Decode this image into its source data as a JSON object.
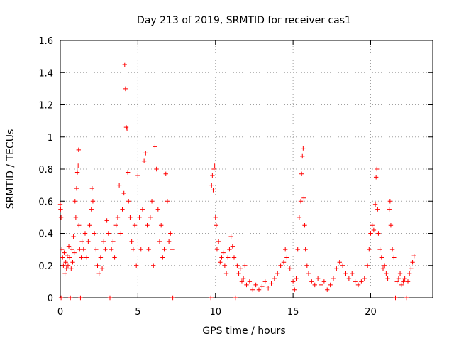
{
  "chart_data": {
    "type": "scatter",
    "title": "Day 213 of 2019, SRMTID for receiver cas1",
    "xlabel": "GPS time / hours",
    "ylabel": "SRMTID / TECUs",
    "xlim": [
      0,
      24
    ],
    "ylim": [
      0,
      1.6
    ],
    "x_ticks": [
      0,
      5,
      10,
      15,
      20
    ],
    "x_tick_labels": [
      "0",
      "5",
      "10",
      "15",
      "20"
    ],
    "y_ticks": [
      0,
      0.2,
      0.4,
      0.6,
      0.8,
      1.0,
      1.2,
      1.4,
      1.6
    ],
    "y_tick_labels": [
      "0",
      "0.2",
      "0.4",
      "0.6",
      "0.8",
      "1",
      "1.2",
      "1.4",
      "1.6"
    ],
    "grid": true,
    "marker": "+",
    "color": "#ff0000",
    "series": [
      {
        "name": "SRMTID",
        "points": [
          [
            0.0,
            0.58
          ],
          [
            0.02,
            0.55
          ],
          [
            0.05,
            0.5
          ],
          [
            0.05,
            0.0
          ],
          [
            0.1,
            0.3
          ],
          [
            0.15,
            0.25
          ],
          [
            0.2,
            0.2
          ],
          [
            0.25,
            0.28
          ],
          [
            0.3,
            0.15
          ],
          [
            0.35,
            0.22
          ],
          [
            0.4,
            0.18
          ],
          [
            0.45,
            0.26
          ],
          [
            0.5,
            0.2
          ],
          [
            0.55,
            0.32
          ],
          [
            0.6,
            0.25
          ],
          [
            0.65,
            0.0
          ],
          [
            0.7,
            0.18
          ],
          [
            0.75,
            0.3
          ],
          [
            0.8,
            0.22
          ],
          [
            0.85,
            0.38
          ],
          [
            0.9,
            0.28
          ],
          [
            0.95,
            0.6
          ],
          [
            1.0,
            0.5
          ],
          [
            1.05,
            0.68
          ],
          [
            1.1,
            0.78
          ],
          [
            1.15,
            0.82
          ],
          [
            1.18,
            0.92
          ],
          [
            1.2,
            0.45
          ],
          [
            1.25,
            0.3
          ],
          [
            1.3,
            0.0
          ],
          [
            1.35,
            0.25
          ],
          [
            1.4,
            0.35
          ],
          [
            1.5,
            0.3
          ],
          [
            1.6,
            0.4
          ],
          [
            1.7,
            0.25
          ],
          [
            1.8,
            0.35
          ],
          [
            1.9,
            0.45
          ],
          [
            2.0,
            0.55
          ],
          [
            2.05,
            0.68
          ],
          [
            2.1,
            0.6
          ],
          [
            2.2,
            0.4
          ],
          [
            2.3,
            0.3
          ],
          [
            2.4,
            0.2
          ],
          [
            2.5,
            0.15
          ],
          [
            2.6,
            0.25
          ],
          [
            2.7,
            0.18
          ],
          [
            2.8,
            0.35
          ],
          [
            2.9,
            0.3
          ],
          [
            3.0,
            0.48
          ],
          [
            3.1,
            0.4
          ],
          [
            3.2,
            0.0
          ],
          [
            3.3,
            0.3
          ],
          [
            3.4,
            0.35
          ],
          [
            3.5,
            0.25
          ],
          [
            3.6,
            0.45
          ],
          [
            3.7,
            0.5
          ],
          [
            3.8,
            0.7
          ],
          [
            3.9,
            0.4
          ],
          [
            4.0,
            0.55
          ],
          [
            4.1,
            0.65
          ],
          [
            4.15,
            1.45
          ],
          [
            4.2,
            1.3
          ],
          [
            4.25,
            1.06
          ],
          [
            4.3,
            1.05
          ],
          [
            4.35,
            0.78
          ],
          [
            4.4,
            0.6
          ],
          [
            4.5,
            0.5
          ],
          [
            4.6,
            0.35
          ],
          [
            4.7,
            0.3
          ],
          [
            4.8,
            0.45
          ],
          [
            4.9,
            0.2
          ],
          [
            5.0,
            0.76
          ],
          [
            5.1,
            0.5
          ],
          [
            5.2,
            0.3
          ],
          [
            5.3,
            0.55
          ],
          [
            5.4,
            0.85
          ],
          [
            5.5,
            0.9
          ],
          [
            5.6,
            0.45
          ],
          [
            5.7,
            0.3
          ],
          [
            5.8,
            0.5
          ],
          [
            5.9,
            0.6
          ],
          [
            6.0,
            0.2
          ],
          [
            6.1,
            0.94
          ],
          [
            6.2,
            0.8
          ],
          [
            6.3,
            0.55
          ],
          [
            6.4,
            0.35
          ],
          [
            6.5,
            0.45
          ],
          [
            6.6,
            0.25
          ],
          [
            6.7,
            0.3
          ],
          [
            6.8,
            0.77
          ],
          [
            6.9,
            0.6
          ],
          [
            7.0,
            0.35
          ],
          [
            7.1,
            0.4
          ],
          [
            7.2,
            0.3
          ],
          [
            7.25,
            0.0
          ],
          [
            9.7,
            0.0
          ],
          [
            9.75,
            0.7
          ],
          [
            9.8,
            0.76
          ],
          [
            9.85,
            0.67
          ],
          [
            9.9,
            0.8
          ],
          [
            9.95,
            0.82
          ],
          [
            10.0,
            0.5
          ],
          [
            10.05,
            0.45
          ],
          [
            10.1,
            0.3
          ],
          [
            10.2,
            0.35
          ],
          [
            10.3,
            0.22
          ],
          [
            10.4,
            0.25
          ],
          [
            10.5,
            0.28
          ],
          [
            10.6,
            0.2
          ],
          [
            10.7,
            0.15
          ],
          [
            10.8,
            0.25
          ],
          [
            10.9,
            0.3
          ],
          [
            11.0,
            0.38
          ],
          [
            11.1,
            0.32
          ],
          [
            11.2,
            0.25
          ],
          [
            11.3,
            0.0
          ],
          [
            11.4,
            0.2
          ],
          [
            11.5,
            0.15
          ],
          [
            11.6,
            0.18
          ],
          [
            11.7,
            0.1
          ],
          [
            11.8,
            0.12
          ],
          [
            11.9,
            0.2
          ],
          [
            12.0,
            0.08
          ],
          [
            12.2,
            0.1
          ],
          [
            12.4,
            0.05
          ],
          [
            12.6,
            0.08
          ],
          [
            12.8,
            0.05
          ],
          [
            13.0,
            0.07
          ],
          [
            13.2,
            0.1
          ],
          [
            13.4,
            0.06
          ],
          [
            13.6,
            0.09
          ],
          [
            13.8,
            0.12
          ],
          [
            14.0,
            0.15
          ],
          [
            14.2,
            0.2
          ],
          [
            14.4,
            0.22
          ],
          [
            14.5,
            0.3
          ],
          [
            14.6,
            0.25
          ],
          [
            14.8,
            0.18
          ],
          [
            15.0,
            0.1
          ],
          [
            15.1,
            0.05
          ],
          [
            15.2,
            0.12
          ],
          [
            15.3,
            0.3
          ],
          [
            15.4,
            0.5
          ],
          [
            15.5,
            0.6
          ],
          [
            15.55,
            0.77
          ],
          [
            15.6,
            0.88
          ],
          [
            15.65,
            0.93
          ],
          [
            15.7,
            0.62
          ],
          [
            15.75,
            0.45
          ],
          [
            15.8,
            0.3
          ],
          [
            15.9,
            0.2
          ],
          [
            16.0,
            0.15
          ],
          [
            16.2,
            0.1
          ],
          [
            16.4,
            0.08
          ],
          [
            16.6,
            0.12
          ],
          [
            16.8,
            0.08
          ],
          [
            17.0,
            0.1
          ],
          [
            17.2,
            0.05
          ],
          [
            17.4,
            0.08
          ],
          [
            17.6,
            0.12
          ],
          [
            17.8,
            0.18
          ],
          [
            18.0,
            0.22
          ],
          [
            18.2,
            0.2
          ],
          [
            18.4,
            0.15
          ],
          [
            18.6,
            0.12
          ],
          [
            18.8,
            0.15
          ],
          [
            19.0,
            0.1
          ],
          [
            19.2,
            0.08
          ],
          [
            19.4,
            0.1
          ],
          [
            19.6,
            0.12
          ],
          [
            19.8,
            0.2
          ],
          [
            19.9,
            0.3
          ],
          [
            20.0,
            0.4
          ],
          [
            20.1,
            0.45
          ],
          [
            20.2,
            0.42
          ],
          [
            20.3,
            0.58
          ],
          [
            20.35,
            0.75
          ],
          [
            20.4,
            0.8
          ],
          [
            20.45,
            0.55
          ],
          [
            20.5,
            0.4
          ],
          [
            20.6,
            0.3
          ],
          [
            20.7,
            0.25
          ],
          [
            20.8,
            0.18
          ],
          [
            20.9,
            0.2
          ],
          [
            21.0,
            0.15
          ],
          [
            21.1,
            0.12
          ],
          [
            21.2,
            0.55
          ],
          [
            21.25,
            0.6
          ],
          [
            21.3,
            0.45
          ],
          [
            21.4,
            0.3
          ],
          [
            21.5,
            0.25
          ],
          [
            21.6,
            0.0
          ],
          [
            21.7,
            0.1
          ],
          [
            21.8,
            0.12
          ],
          [
            21.9,
            0.15
          ],
          [
            22.0,
            0.08
          ],
          [
            22.1,
            0.1
          ],
          [
            22.2,
            0.12
          ],
          [
            22.3,
            0.0
          ],
          [
            22.4,
            0.1
          ],
          [
            22.5,
            0.15
          ],
          [
            22.6,
            0.18
          ],
          [
            22.7,
            0.22
          ],
          [
            22.8,
            0.26
          ]
        ]
      }
    ]
  }
}
